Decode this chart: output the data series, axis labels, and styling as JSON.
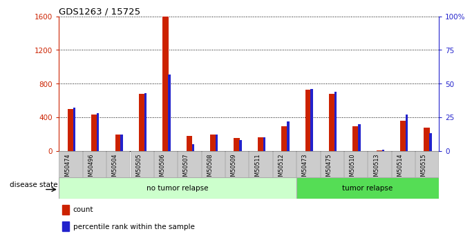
{
  "title": "GDS1263 / 15725",
  "categories": [
    "GSM50474",
    "GSM50496",
    "GSM50504",
    "GSM50505",
    "GSM50506",
    "GSM50507",
    "GSM50508",
    "GSM50509",
    "GSM50511",
    "GSM50512",
    "GSM50473",
    "GSM50475",
    "GSM50510",
    "GSM50513",
    "GSM50514",
    "GSM50515"
  ],
  "count": [
    500,
    430,
    195,
    680,
    1600,
    175,
    195,
    155,
    165,
    295,
    730,
    680,
    295,
    8,
    360,
    275
  ],
  "percentile": [
    32,
    28,
    12,
    43,
    57,
    5,
    12,
    8,
    10,
    22,
    46,
    44,
    20,
    1,
    27,
    13
  ],
  "no_tumor_count": 10,
  "left_ylim": [
    0,
    1600
  ],
  "right_ylim": [
    0,
    100
  ],
  "left_yticks": [
    0,
    400,
    800,
    1200,
    1600
  ],
  "right_yticks": [
    0,
    25,
    50,
    75,
    100
  ],
  "right_yticklabels": [
    "0",
    "25",
    "50",
    "75",
    "100%"
  ],
  "bar_color": "#cc2200",
  "marker_color": "#2222cc",
  "no_tumor_color": "#ccffcc",
  "tumor_color": "#55dd55",
  "tick_bg": "#cccccc",
  "disease_label": "disease state",
  "no_tumor_label": "no tumor relapse",
  "tumor_label": "tumor relapse",
  "legend_count": "count",
  "legend_pct": "percentile rank within the sample",
  "left_tick_color": "#cc2200",
  "right_tick_color": "#2222cc",
  "red_bar_width": 0.25,
  "blue_bar_width": 0.1
}
